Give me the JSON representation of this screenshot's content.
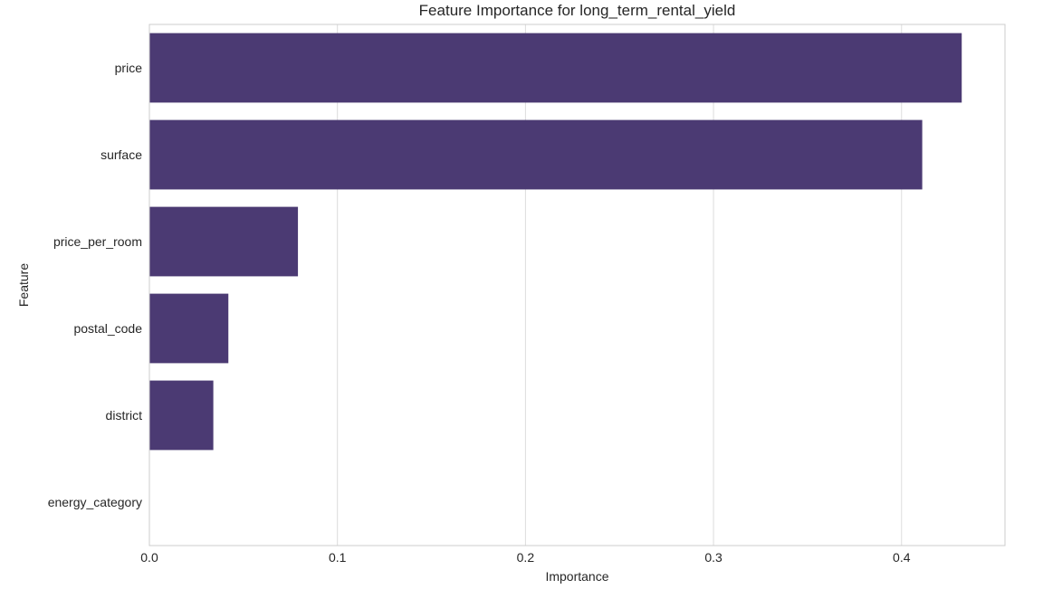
{
  "chart_data": {
    "type": "bar",
    "orientation": "horizontal",
    "title": "Feature Importance for long_term_rental_yield",
    "xlabel": "Importance",
    "ylabel": "Feature",
    "categories": [
      "price",
      "surface",
      "price_per_room",
      "postal_code",
      "district",
      "energy_category"
    ],
    "values": [
      0.432,
      0.411,
      0.079,
      0.042,
      0.034,
      0.0
    ],
    "xlim": [
      0,
      0.455
    ],
    "xticks": [
      0.0,
      0.1,
      0.2,
      0.3,
      0.4
    ],
    "xtick_labels": [
      "0.0",
      "0.1",
      "0.2",
      "0.3",
      "0.4"
    ],
    "grid": "vertical",
    "legend": "none",
    "bar_color": "#4b3a73",
    "grid_color": "#dcdcdc",
    "frame_color": "#cccccc"
  }
}
